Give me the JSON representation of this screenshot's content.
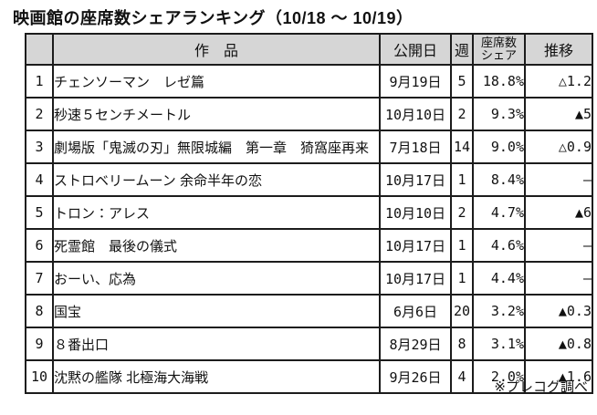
{
  "page": {
    "title": "映画館の座席数シェアランキング（10/18 ～ 10/19）",
    "footer_note": "※プレコグ調べ"
  },
  "table": {
    "headers": {
      "rank": "",
      "title": "作　品",
      "release_date": "公開日",
      "week": "週",
      "seat_share_line1": "座席数",
      "seat_share_line2": "シェア",
      "trend": "推移"
    },
    "rows": [
      {
        "rank": "1",
        "title": "チェンソーマン　レゼ篇",
        "release_date": "9月19日",
        "week": "5",
        "seat_share": "18.8%",
        "trend": "△1.2"
      },
      {
        "rank": "2",
        "title": "秒速５センチメートル",
        "release_date": "10月10日",
        "week": "2",
        "seat_share": "9.3%",
        "trend": "▲5"
      },
      {
        "rank": "3",
        "title": "劇場版「鬼滅の刃」無限城編　第一章　猗窩座再来",
        "release_date": "7月18日",
        "week": "14",
        "seat_share": "9.0%",
        "trend": "△0.9"
      },
      {
        "rank": "4",
        "title": "ストロベリームーン 余命半年の恋",
        "release_date": "10月17日",
        "week": "1",
        "seat_share": "8.4%",
        "trend": "―"
      },
      {
        "rank": "5",
        "title": "トロン：アレス",
        "release_date": "10月10日",
        "week": "2",
        "seat_share": "4.7%",
        "trend": "▲6"
      },
      {
        "rank": "6",
        "title": "死霊館　最後の儀式",
        "release_date": "10月17日",
        "week": "1",
        "seat_share": "4.6%",
        "trend": "―"
      },
      {
        "rank": "7",
        "title": "おーい、応為",
        "release_date": "10月17日",
        "week": "1",
        "seat_share": "4.4%",
        "trend": "―"
      },
      {
        "rank": "8",
        "title": "国宝",
        "release_date": "6月6日",
        "week": "20",
        "seat_share": "3.2%",
        "trend": "▲0.3"
      },
      {
        "rank": "9",
        "title": "８番出口",
        "release_date": "8月29日",
        "week": "8",
        "seat_share": "3.1%",
        "trend": "▲0.8"
      },
      {
        "rank": "10",
        "title": "沈黙の艦隊 北極海大海戦",
        "release_date": "9月26日",
        "week": "4",
        "seat_share": "2.0%",
        "trend": "▲1.6"
      }
    ]
  },
  "colors": {
    "header_bg": "#d6d6d6",
    "border": "#1c1c1c",
    "text": "#111111"
  }
}
